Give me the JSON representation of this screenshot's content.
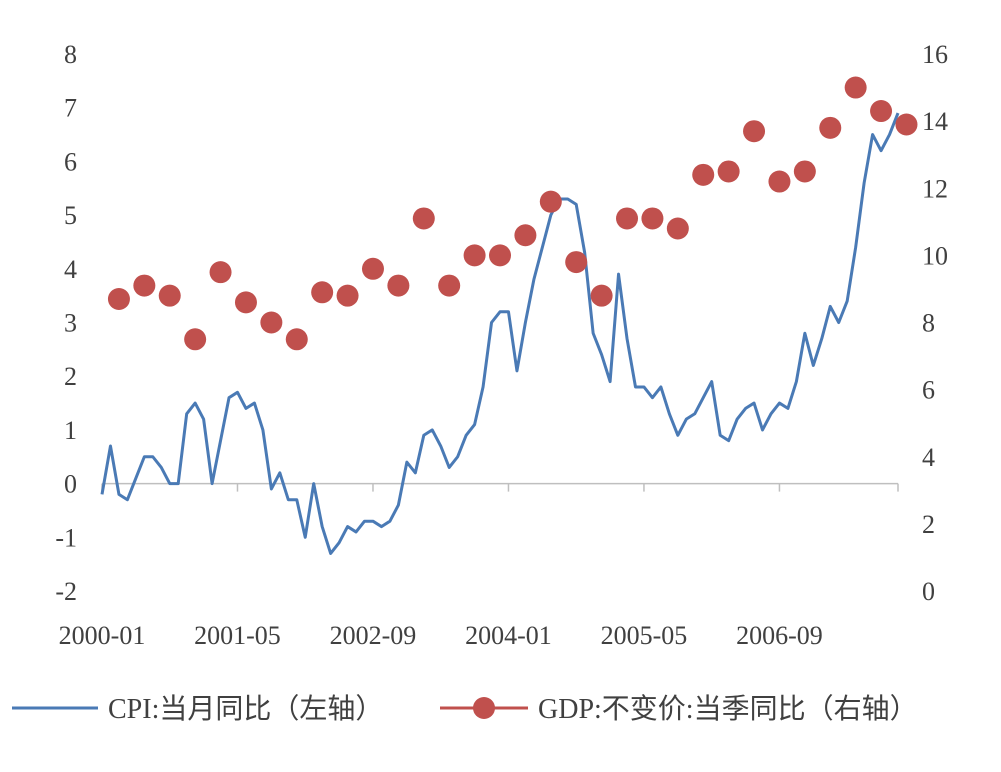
{
  "chart_data": {
    "type": "line",
    "title": "",
    "xlabel": "",
    "ylabel": "",
    "x_tick_labels": [
      "2000-01",
      "2001-05",
      "2002-09",
      "2004-01",
      "2005-05",
      "2006-09"
    ],
    "y_left": {
      "range": [
        -2,
        8
      ],
      "ticks": [
        -2,
        -1,
        0,
        1,
        2,
        3,
        4,
        5,
        6,
        7,
        8
      ],
      "tick_labels": [
        "-2",
        "-1",
        "0",
        "1",
        "2",
        "3",
        "4",
        "5",
        "6",
        "7",
        "8"
      ]
    },
    "y_right": {
      "range": [
        0,
        16
      ],
      "ticks": [
        0,
        2,
        4,
        6,
        8,
        10,
        12,
        14,
        16
      ],
      "tick_labels": [
        "0",
        "2",
        "4",
        "6",
        "8",
        "10",
        "12",
        "14",
        "16"
      ]
    },
    "grid": false,
    "legend_position": "bottom",
    "series": [
      {
        "name": "CPI:当月同比（左轴）",
        "type": "line",
        "axis": "left",
        "color": "#4a7ab5",
        "start": "2000-01",
        "values": [
          -0.2,
          0.7,
          -0.2,
          -0.3,
          0.1,
          0.5,
          0.5,
          0.3,
          0.0,
          0.0,
          1.3,
          1.5,
          1.2,
          0.0,
          0.8,
          1.6,
          1.7,
          1.4,
          1.5,
          1.0,
          -0.1,
          0.2,
          -0.3,
          -0.3,
          -1.0,
          0.0,
          -0.8,
          -1.3,
          -1.1,
          -0.8,
          -0.9,
          -0.7,
          -0.7,
          -0.8,
          -0.7,
          -0.4,
          0.4,
          0.2,
          0.9,
          1.0,
          0.7,
          0.3,
          0.5,
          0.9,
          1.1,
          1.8,
          3.0,
          3.2,
          3.2,
          2.1,
          3.0,
          3.8,
          4.4,
          5.0,
          5.3,
          5.3,
          5.2,
          4.3,
          2.8,
          2.4,
          1.9,
          3.9,
          2.7,
          1.8,
          1.8,
          1.6,
          1.8,
          1.3,
          0.9,
          1.2,
          1.3,
          1.6,
          1.9,
          0.9,
          0.8,
          1.2,
          1.4,
          1.5,
          1.0,
          1.3,
          1.5,
          1.4,
          1.9,
          2.8,
          2.2,
          2.7,
          3.3,
          3.0,
          3.4,
          4.4,
          5.6,
          6.5,
          6.2,
          6.5,
          6.9
        ]
      },
      {
        "name": "GDP:不变价:当季同比（右轴）",
        "type": "scatter",
        "axis": "right",
        "color": "#c0504d",
        "start": "2000-03",
        "step_months": 3,
        "values": [
          8.7,
          9.1,
          8.8,
          7.5,
          9.5,
          8.6,
          8.0,
          7.5,
          8.9,
          8.8,
          9.6,
          9.1,
          11.1,
          9.1,
          10.0,
          10.0,
          10.6,
          11.6,
          9.8,
          8.8,
          11.1,
          11.1,
          10.8,
          12.4,
          12.5,
          13.7,
          12.2,
          12.5,
          13.8,
          15.0,
          14.3,
          13.9
        ]
      }
    ]
  }
}
